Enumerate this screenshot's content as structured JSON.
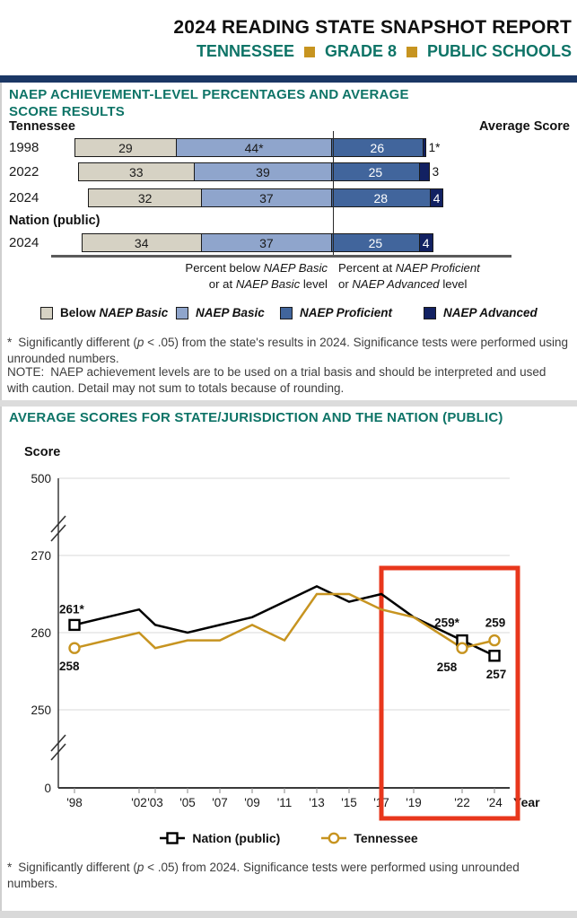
{
  "header": {
    "title": "2024 READING STATE SNAPSHOT REPORT",
    "subject_parts": [
      "TENNESSEE",
      "GRADE 8",
      "PUBLIC SCHOOLS"
    ]
  },
  "colors": {
    "teal": "#0e7467",
    "gold": "#c79420",
    "navy_bar": "#1b3765",
    "below_basic": "#d6d2c4",
    "basic": "#8fa5cc",
    "proficient": "#41659c",
    "advanced": "#122162",
    "nation_line": "#000000",
    "tennessee_line": "#c79420",
    "red_box": "#e8371c",
    "grid": "#d9d9d9",
    "axis": "#3a3a3a"
  },
  "section1": {
    "heading": "NAEP ACHIEVEMENT-LEVEL PERCENTAGES AND AVERAGE SCORE RESULTS",
    "left_header": "Tennessee",
    "right_header": "Average Score",
    "nation_group_label": "Nation (public)",
    "axis_note_left": [
      [
        [
          "Percent below ",
          0
        ],
        [
          "NAEP Basic",
          1
        ]
      ],
      [
        [
          "or at ",
          0
        ],
        [
          "NAEP Basic",
          1
        ],
        [
          " level",
          0
        ]
      ]
    ],
    "axis_note_right": [
      [
        [
          "Percent at ",
          0
        ],
        [
          "NAEP Proficient",
          1
        ]
      ],
      [
        [
          "or ",
          0
        ],
        [
          "NAEP Advanced",
          1
        ],
        [
          " level",
          0
        ]
      ]
    ],
    "legend": [
      {
        "color_key": "below_basic",
        "label_rich": [
          [
            "Below ",
            0
          ],
          [
            "NAEP Basic",
            1
          ]
        ]
      },
      {
        "color_key": "basic",
        "label_rich": [
          [
            "NAEP Basic",
            1
          ]
        ]
      },
      {
        "color_key": "proficient",
        "label_rich": [
          [
            "NAEP Proficient",
            1
          ]
        ]
      },
      {
        "color_key": "advanced",
        "label_rich": [
          [
            "NAEP Advanced",
            1
          ]
        ]
      }
    ],
    "footnote_marker": "*",
    "footnote_rich": [
      [
        "Significantly different (",
        0
      ],
      [
        "p",
        1
      ],
      [
        " < .05) from the state's results in 2024. Significance tests were performed using unrounded numbers.",
        0
      ]
    ],
    "note_marker": "NOTE:",
    "note_text": "NAEP achievement levels are to be used on a trial basis and should be interpreted and used with caution. Detail may not sum to totals because of rounding."
  },
  "section2": {
    "heading": "AVERAGE SCORES FOR STATE/JURISDICTION AND THE NATION (PUBLIC)",
    "score_label": "Score",
    "year_label": "Year",
    "legend": [
      {
        "name": "Nation (public)",
        "marker": "square",
        "color_key": "nation_line"
      },
      {
        "name": "Tennessee",
        "marker": "circle",
        "color_key": "tennessee_line"
      }
    ],
    "footnote_marker": "*",
    "footnote_rich": [
      [
        "Significantly different (",
        0
      ],
      [
        "p",
        1
      ],
      [
        " < .05) from 2024. Significance tests were performed using unrounded numbers.",
        0
      ]
    ]
  },
  "chart_data": [
    {
      "type": "bar",
      "orientation": "horizontal-stacked",
      "title": "NAEP ACHIEVEMENT-LEVEL PERCENTAGES AND AVERAGE SCORE RESULTS",
      "categories": [
        "Tennessee 1998",
        "Tennessee 2022",
        "Tennessee 2024",
        "Nation (public) 2024"
      ],
      "series_names": [
        "Below NAEP Basic",
        "NAEP Basic",
        "NAEP Proficient",
        "NAEP Advanced"
      ],
      "rows": [
        {
          "year": "1998",
          "values": [
            29,
            44,
            26,
            1
          ],
          "labels": [
            "29",
            "44*",
            "26",
            "1*"
          ],
          "advanced_label_inside": false,
          "score": "258"
        },
        {
          "year": "2022",
          "values": [
            33,
            39,
            25,
            3
          ],
          "labels": [
            "33",
            "39",
            "25",
            "3"
          ],
          "advanced_label_inside": false,
          "score": "258"
        },
        {
          "year": "2024",
          "values": [
            32,
            37,
            28,
            4
          ],
          "labels": [
            "32",
            "37",
            "28",
            "4"
          ],
          "advanced_label_inside": true,
          "score": "259"
        },
        {
          "year": "2024",
          "values": [
            34,
            37,
            25,
            4
          ],
          "labels": [
            "34",
            "37",
            "25",
            "4"
          ],
          "advanced_label_inside": true,
          "score": "257",
          "group": "Nation (public)"
        }
      ],
      "average_scores": [
        258,
        258,
        259,
        257
      ]
    },
    {
      "type": "line",
      "title": "AVERAGE SCORES FOR STATE/JURISDICTION AND THE NATION (PUBLIC)",
      "xlabel": "Year",
      "ylabel": "Score",
      "x": [
        1998,
        2002,
        2003,
        2005,
        2007,
        2009,
        2011,
        2013,
        2015,
        2017,
        2019,
        2022,
        2024
      ],
      "x_tick_labels": [
        "'98",
        "'02",
        "'03",
        "'05",
        "'07",
        "'09",
        "'11",
        "'13",
        "'15",
        "'17",
        "'19",
        "'22",
        "'24"
      ],
      "y_ticks": [
        0,
        250,
        260,
        270,
        500
      ],
      "axis_breaks": true,
      "grid": true,
      "series": [
        {
          "name": "Nation (public)",
          "marker": "square",
          "color_key": "nation_line",
          "values": [
            261,
            263,
            261,
            260,
            261,
            262,
            264,
            266,
            264,
            265,
            262,
            259,
            257
          ]
        },
        {
          "name": "Tennessee",
          "marker": "circle",
          "color_key": "tennessee_line",
          "values": [
            258,
            260,
            258,
            259,
            259,
            261,
            259,
            265,
            265,
            263,
            262,
            258,
            259
          ]
        }
      ],
      "marker_x_indices": [
        0,
        11,
        12
      ],
      "point_labels": [
        {
          "series_index": 0,
          "x_index": 0,
          "text": "261*",
          "pos": "nw"
        },
        {
          "series_index": 1,
          "x_index": 0,
          "text": "258",
          "pos": "sw"
        },
        {
          "series_index": 0,
          "x_index": 11,
          "text": "259*",
          "pos": "n-left"
        },
        {
          "series_index": 1,
          "x_index": 11,
          "text": "258",
          "pos": "s-left"
        },
        {
          "series_index": 1,
          "x_index": 12,
          "text": "259",
          "pos": "n"
        },
        {
          "series_index": 0,
          "x_index": 12,
          "text": "257",
          "pos": "s"
        }
      ],
      "highlight_box_years": [
        2017,
        2024
      ]
    }
  ]
}
